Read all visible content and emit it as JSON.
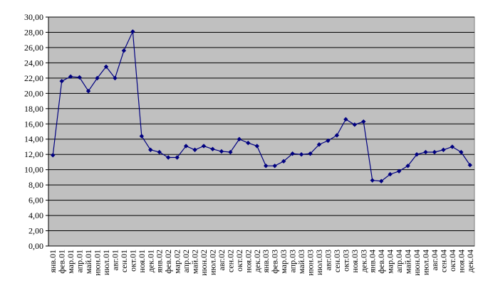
{
  "chart_data": {
    "type": "line",
    "categories": [
      "янв.01",
      "фев.01",
      "мар.01",
      "апр.01",
      "май.01",
      "июн.01",
      "июл.01",
      "авг.01",
      "сен.01",
      "окт.01",
      "ноя.01",
      "дек.01",
      "янв.02",
      "фев.02",
      "мар.02",
      "апр.02",
      "май.02",
      "июн.02",
      "июл.02",
      "авг.02",
      "сен.02",
      "окт.02",
      "ноя.02",
      "дек.02",
      "янв.03",
      "фев.03",
      "мар.03",
      "апр.03",
      "май.03",
      "июн.03",
      "июл.03",
      "авг.03",
      "сен.03",
      "окт.03",
      "ноя.03",
      "дек.03",
      "янв.04",
      "фев.04",
      "мар.04",
      "апр.04",
      "май.04",
      "июн.04",
      "июл.04",
      "авг.04",
      "сен.04",
      "окт.04",
      "ноя.04",
      "дек.04"
    ],
    "values": [
      11.9,
      21.6,
      22.2,
      22.1,
      20.3,
      22.0,
      23.5,
      22.0,
      25.6,
      28.1,
      14.4,
      12.6,
      12.3,
      11.6,
      11.6,
      13.1,
      12.6,
      13.1,
      12.7,
      12.4,
      12.3,
      14.0,
      13.5,
      13.1,
      10.5,
      10.5,
      11.1,
      12.1,
      12.0,
      12.1,
      13.3,
      13.8,
      14.5,
      16.6,
      15.9,
      16.3,
      8.6,
      8.5,
      9.4,
      9.8,
      10.5,
      12.0,
      12.3,
      12.3,
      12.6,
      13.0,
      12.3,
      10.6
    ],
    "color": "#000080",
    "ylim": [
      0,
      30
    ],
    "yticks": [
      {
        "value": 0,
        "label": "0,00"
      },
      {
        "value": 2,
        "label": "2,00"
      },
      {
        "value": 4,
        "label": "4,00"
      },
      {
        "value": 6,
        "label": "6,00"
      },
      {
        "value": 8,
        "label": "8,00"
      },
      {
        "value": 10,
        "label": "10,00"
      },
      {
        "value": 12,
        "label": "12,00"
      },
      {
        "value": 14,
        "label": "14,00"
      },
      {
        "value": 16,
        "label": "16,00"
      },
      {
        "value": 18,
        "label": "18,00"
      },
      {
        "value": 20,
        "label": "20,00"
      },
      {
        "value": 22,
        "label": "22,00"
      },
      {
        "value": 24,
        "label": "24,00"
      },
      {
        "value": 26,
        "label": "26,00"
      },
      {
        "value": 28,
        "label": "28,00"
      },
      {
        "value": 30,
        "label": "30,00"
      }
    ],
    "grid": true
  }
}
